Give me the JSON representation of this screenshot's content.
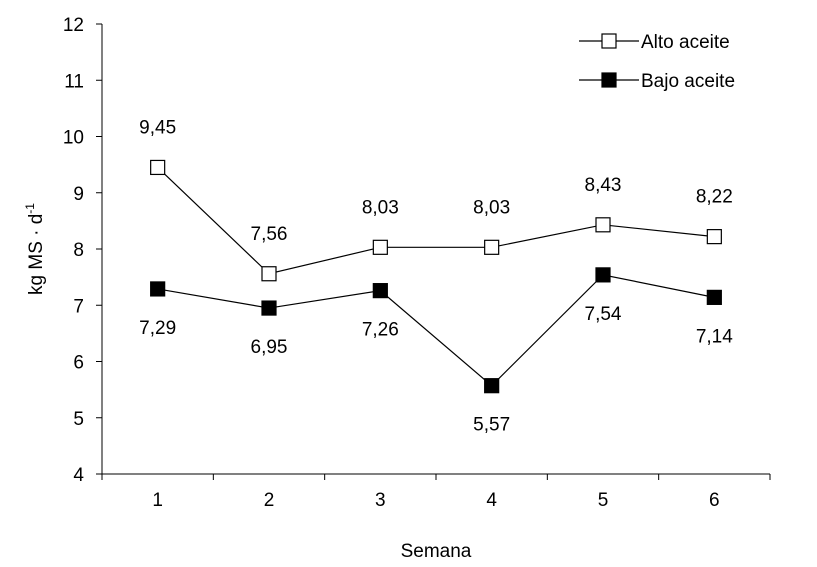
{
  "chart_data": {
    "type": "line",
    "xlabel": "Semana",
    "ylabel": "kg MS · d",
    "ylabel_superscript": "-1",
    "categories": [
      "1",
      "2",
      "3",
      "4",
      "5",
      "6"
    ],
    "ylim": [
      4,
      12
    ],
    "yticks": [
      "4",
      "5",
      "6",
      "7",
      "8",
      "9",
      "10",
      "11",
      "12"
    ],
    "grid": false,
    "legend_position": "top-right",
    "series": [
      {
        "name": "Alto aceite",
        "marker": "open-square",
        "values": [
          9.45,
          7.56,
          8.03,
          8.03,
          8.43,
          8.22
        ],
        "labels": [
          "9,45",
          "7,56",
          "8,03",
          "8,03",
          "8,43",
          "8,22"
        ],
        "label_position": "above"
      },
      {
        "name": "Bajo aceite",
        "marker": "filled-square",
        "values": [
          7.29,
          6.95,
          7.26,
          5.57,
          7.54,
          7.14
        ],
        "labels": [
          "7,29",
          "6,95",
          "7,26",
          "5,57",
          "7,54",
          "7,14"
        ],
        "label_position": "below"
      }
    ]
  }
}
